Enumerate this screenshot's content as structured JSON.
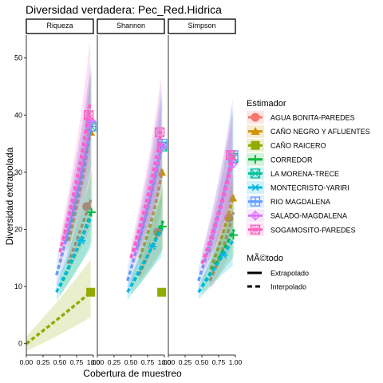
{
  "chart_data": {
    "type": "line",
    "title": "Diversidad verdadera: Pec_Red.Hidrica",
    "xlabel": "Cobertura de muestreo",
    "ylabel": "Diversidad extrapolada",
    "xlim": [
      0,
      1
    ],
    "ylim": [
      -2,
      54
    ],
    "x_ticks": [
      0,
      0.25,
      0.5,
      0.75,
      1
    ],
    "x_tick_labels": [
      "0.00",
      "0.25",
      "0.50",
      "0.75",
      "1.00"
    ],
    "y_ticks": [
      0,
      10,
      20,
      30,
      40,
      50
    ],
    "grid": false,
    "legend_position": "right",
    "panels": [
      "Riqueza",
      "Shannon",
      "Simpson"
    ],
    "legend_title": "Estimador",
    "linetype_legend_title": "MÃ©todo",
    "linetype_entries": [
      {
        "label": "Extrapolado",
        "style": "solid"
      },
      {
        "label": "Interpolado",
        "style": "dashed"
      }
    ],
    "series": [
      {
        "name": "AGUA BONITA-PAREDES",
        "color": "#F8766D",
        "icon": "circle",
        "obs_x": 0.9,
        "obs_y": [
          24,
          19.5,
          22
        ],
        "curves": [
          [
            0.62,
            14,
            0.82,
            20,
            0.97,
            25.5
          ],
          [
            0.62,
            12,
            0.82,
            17,
            0.97,
            21
          ],
          [
            0.62,
            11,
            0.82,
            16,
            0.97,
            23
          ]
        ]
      },
      {
        "name": "CAÑO NEGRO Y AFLUENTES",
        "color": "#D39200",
        "icon": "triangle",
        "obs_x": 0.96,
        "obs_y": [
          37,
          30,
          25.5
        ],
        "curves": [
          [
            0.63,
            18,
            0.85,
            28,
            0.97,
            38.5
          ],
          [
            0.63,
            15,
            0.85,
            22,
            0.97,
            30.5
          ],
          [
            0.63,
            13,
            0.85,
            20,
            0.97,
            26
          ]
        ]
      },
      {
        "name": "CAÑO RAICERO",
        "color": "#93AA00",
        "icon": "square",
        "obs_x": 0.96,
        "obs_y": [
          9,
          9,
          null
        ],
        "curves": [
          [
            0,
            0,
            0.5,
            4.5,
            0.96,
            9
          ],
          null,
          null
        ]
      },
      {
        "name": "CORREDOR",
        "color": "#00BA38",
        "icon": "plus",
        "obs_x": 0.97,
        "obs_y": [
          23,
          20.5,
          19
        ],
        "curves": [
          [
            0.5,
            10,
            0.8,
            17,
            0.98,
            23.5
          ],
          [
            0.5,
            10,
            0.8,
            16,
            0.98,
            21.5
          ],
          [
            0.5,
            10,
            0.8,
            15.5,
            0.98,
            20
          ]
        ]
      },
      {
        "name": "LA MORENA-TRECE",
        "color": "#00C19F",
        "icon": "square-x",
        "obs_x": 0.97,
        "obs_y": [
          38,
          34.5,
          32.5
        ],
        "curves": [
          [
            0.6,
            18,
            0.82,
            28,
            0.97,
            38.5
          ],
          [
            0.6,
            17,
            0.82,
            26,
            0.97,
            35
          ],
          [
            0.6,
            16,
            0.82,
            25,
            0.97,
            33
          ]
        ]
      },
      {
        "name": "MONTECRISTO-YARIRI",
        "color": "#00B9E3",
        "icon": "asterisk",
        "obs_x": 0.82,
        "obs_y": [
          18,
          17,
          15.5
        ],
        "curves": [
          [
            0.45,
            9,
            0.82,
            18,
            0.96,
            22
          ],
          [
            0.45,
            9,
            0.82,
            17,
            0.96,
            20
          ],
          [
            0.45,
            9,
            0.82,
            15.5,
            0.96,
            18
          ]
        ]
      },
      {
        "name": "RIO MAGDALENA",
        "color": "#619CFF",
        "icon": "square-plus",
        "obs_x": 0.97,
        "obs_y": [
          38,
          35,
          33
        ],
        "curves": [
          [
            0.45,
            12,
            0.78,
            26,
            0.96,
            38
          ],
          [
            0.45,
            11,
            0.78,
            24,
            0.96,
            35
          ],
          [
            0.45,
            11,
            0.78,
            23,
            0.96,
            33
          ]
        ]
      },
      {
        "name": "SALADO-MAGDALENA",
        "color": "#DB72FB",
        "icon": "diamond-plus",
        "obs_x": 0.96,
        "obs_y": [
          39,
          34.5,
          31.5
        ],
        "curves": [
          [
            0.55,
            18,
            0.82,
            30,
            0.96,
            39
          ],
          [
            0.55,
            16,
            0.82,
            27,
            0.96,
            35
          ],
          [
            0.55,
            15,
            0.82,
            24,
            0.96,
            32
          ]
        ]
      },
      {
        "name": "SOGAMOSITO-PAREDES",
        "color": "#FF61C3",
        "icon": "square-star",
        "obs_x": 0.93,
        "obs_y": [
          40,
          37,
          33
        ],
        "curves": [
          [
            0.5,
            16,
            0.8,
            30,
            0.95,
            42
          ],
          [
            0.5,
            15,
            0.8,
            27,
            0.95,
            37
          ],
          [
            0.5,
            14,
            0.8,
            24,
            0.95,
            33
          ]
        ]
      }
    ]
  }
}
